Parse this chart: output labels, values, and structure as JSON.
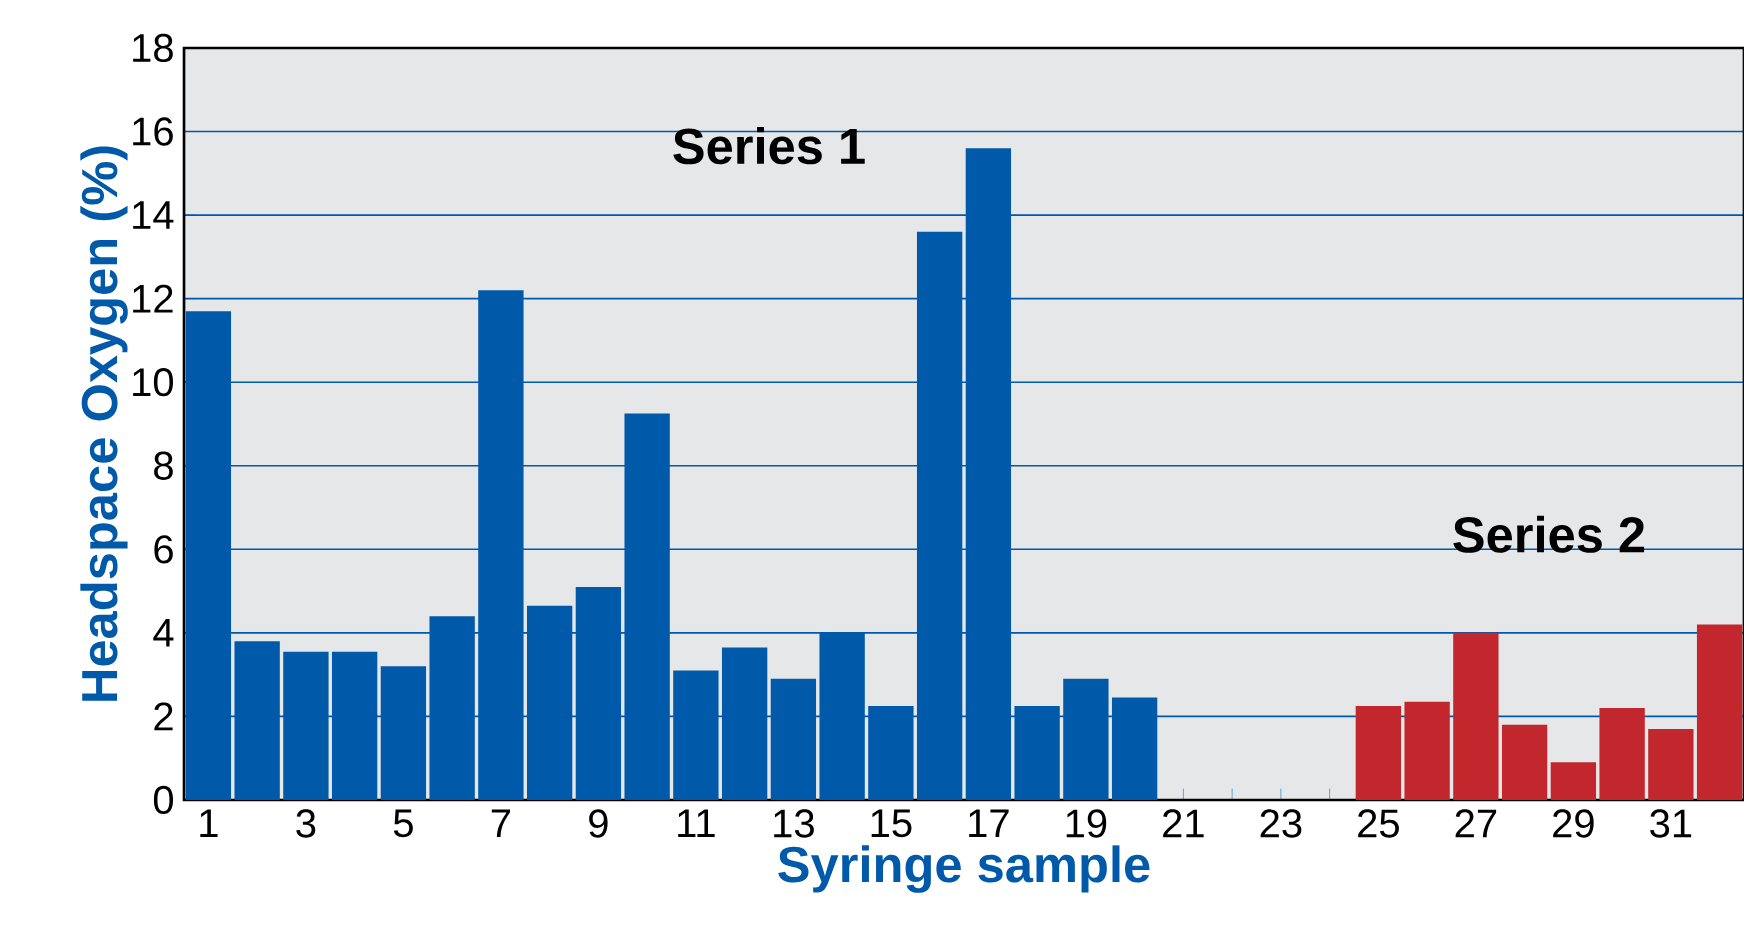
{
  "chart_data": {
    "type": "bar",
    "xlabel": "Syringe sample",
    "ylabel": "Headspace Oxygen (%)",
    "categories": [
      "1",
      null,
      "3",
      null,
      "5",
      null,
      "7",
      null,
      "9",
      null,
      "11",
      null,
      "13",
      null,
      "15",
      null,
      "17",
      null,
      "19",
      null,
      "21",
      null,
      "23",
      null,
      "25",
      null,
      "27",
      null,
      "29",
      null,
      "31",
      null
    ],
    "series": [
      {
        "name": "Series 1",
        "color": "#005aa9",
        "values": [
          11.7,
          3.8,
          3.55,
          3.55,
          3.2,
          4.4,
          12.2,
          4.65,
          5.1,
          9.25,
          3.1,
          3.65,
          2.9,
          4.0,
          2.25,
          13.6,
          15.6,
          2.25,
          2.9,
          2.45,
          0,
          0,
          0,
          0,
          null,
          null,
          null,
          null,
          null,
          null,
          null,
          null
        ]
      },
      {
        "name": "Series 2",
        "color": "#c1272d",
        "values": [
          null,
          null,
          null,
          null,
          null,
          null,
          null,
          null,
          null,
          null,
          null,
          null,
          null,
          null,
          null,
          null,
          null,
          null,
          null,
          null,
          null,
          null,
          null,
          null,
          2.25,
          2.35,
          4.0,
          1.8,
          0.9,
          2.2,
          1.7,
          4.2
        ]
      }
    ],
    "ylim": [
      0,
      18
    ],
    "yticks": [
      0,
      2,
      4,
      6,
      8,
      10,
      12,
      14,
      16,
      18
    ],
    "grid": "y",
    "legend": false
  }
}
